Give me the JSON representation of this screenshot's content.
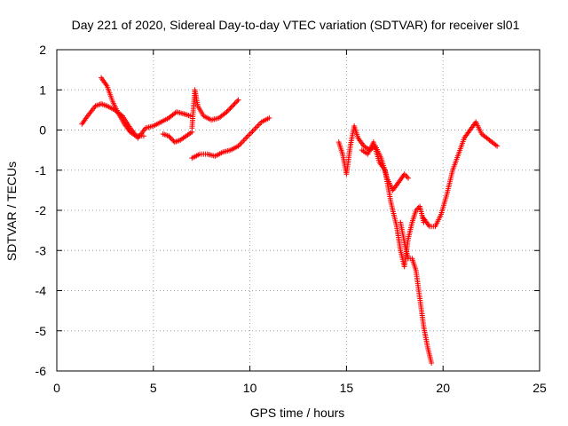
{
  "chart_data": {
    "type": "scatter",
    "title": "Day 221 of 2020, Sidereal Day-to-day VTEC variation (SDTVAR) for receiver sl01",
    "xlabel": "GPS time / hours",
    "ylabel": "SDTVAR / TECUs",
    "xlim": [
      0,
      25
    ],
    "ylim": [
      -6,
      2
    ],
    "xticks": [
      0,
      5,
      10,
      15,
      20,
      25
    ],
    "yticks": [
      -6,
      -5,
      -4,
      -3,
      -2,
      -1,
      0,
      1,
      2
    ],
    "grid": true,
    "marker": "plus",
    "color": "#ff0000",
    "series": [
      {
        "x": [
          1.3,
          1.6,
          2.0,
          2.3,
          2.6,
          3.0,
          3.4,
          3.8,
          4.2,
          4.6,
          5.0,
          5.4,
          5.8,
          6.2,
          6.6,
          6.9
        ],
        "y": [
          0.15,
          0.35,
          0.6,
          0.65,
          0.6,
          0.5,
          0.35,
          0.05,
          -0.2,
          0.05,
          0.1,
          0.2,
          0.3,
          0.45,
          0.4,
          0.35
        ]
      },
      {
        "x": [
          2.3,
          2.6,
          2.9,
          3.2,
          3.5,
          3.8,
          4.1,
          4.5
        ],
        "y": [
          1.3,
          1.1,
          0.7,
          0.4,
          0.15,
          -0.05,
          -0.15,
          -0.15
        ]
      },
      {
        "x": [
          5.5,
          5.8,
          6.1,
          6.4,
          6.7,
          7.0
        ],
        "y": [
          -0.1,
          -0.15,
          -0.3,
          -0.25,
          -0.15,
          -0.05
        ]
      },
      {
        "x": [
          7.0,
          7.15,
          7.3,
          7.6,
          8.0,
          8.4,
          8.8,
          9.1,
          9.4
        ],
        "y": [
          0.05,
          1.0,
          0.6,
          0.35,
          0.25,
          0.3,
          0.45,
          0.6,
          0.75
        ]
      },
      {
        "x": [
          7.0,
          7.4,
          7.8,
          8.2,
          8.6,
          9.0,
          9.4,
          9.8,
          10.2,
          10.6,
          11.0
        ],
        "y": [
          -0.7,
          -0.6,
          -0.6,
          -0.65,
          -0.55,
          -0.5,
          -0.4,
          -0.2,
          0.0,
          0.2,
          0.3
        ]
      },
      {
        "x": [
          14.6,
          14.8,
          15.0,
          15.2,
          15.4,
          15.6,
          15.9,
          16.2,
          16.5,
          16.8,
          17.1,
          17.4,
          17.7,
          18.0,
          18.2
        ],
        "y": [
          -0.3,
          -0.6,
          -1.1,
          -0.4,
          0.1,
          -0.2,
          -0.4,
          -0.5,
          -0.4,
          -0.7,
          -1.2,
          -1.5,
          -1.3,
          -1.1,
          -1.2
        ]
      },
      {
        "x": [
          15.8,
          16.1,
          16.4,
          16.7,
          17.0,
          17.3,
          17.6,
          17.8,
          18.0,
          18.2,
          18.4,
          18.6,
          18.8,
          19.0
        ],
        "y": [
          -0.5,
          -0.6,
          -0.3,
          -0.8,
          -1.0,
          -1.8,
          -2.4,
          -3.0,
          -3.4,
          -2.7,
          -2.3,
          -2.0,
          -1.9,
          -2.3
        ]
      },
      {
        "x": [
          17.8,
          18.0,
          18.2,
          18.4,
          18.6,
          18.8,
          19.0,
          19.2,
          19.4
        ],
        "y": [
          -2.3,
          -2.8,
          -3.2,
          -3.2,
          -3.5,
          -4.2,
          -4.9,
          -5.4,
          -5.8
        ]
      },
      {
        "x": [
          19.0,
          19.3,
          19.6,
          19.9,
          20.2,
          20.5,
          20.8,
          21.1,
          21.4,
          21.7,
          22.0,
          22.4,
          22.8
        ],
        "y": [
          -2.2,
          -2.4,
          -2.4,
          -2.1,
          -1.6,
          -1.0,
          -0.6,
          -0.2,
          0.0,
          0.2,
          -0.1,
          -0.25,
          -0.4
        ]
      }
    ]
  }
}
